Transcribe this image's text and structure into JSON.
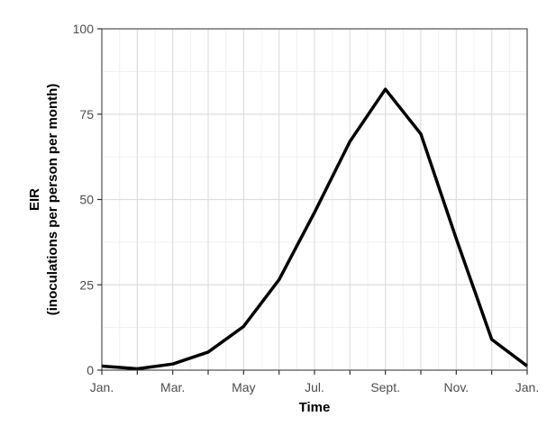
{
  "chart_data": {
    "type": "line",
    "title": "",
    "xlabel": "Time",
    "ylabel": "EIR",
    "ylabel_line2": "(inoculations per person per month)",
    "x_ticks": [
      {
        "x": 0,
        "label": "Jan."
      },
      {
        "x": 2,
        "label": "Mar."
      },
      {
        "x": 4,
        "label": "May"
      },
      {
        "x": 6,
        "label": "Jul."
      },
      {
        "x": 8,
        "label": "Sept."
      },
      {
        "x": 10,
        "label": "Nov."
      },
      {
        "x": 12,
        "label": "Jan."
      }
    ],
    "x_minor_ticks": [
      1,
      3,
      5,
      7,
      9,
      11
    ],
    "xlim": [
      0,
      12
    ],
    "y_ticks": [
      0,
      25,
      50,
      75,
      100
    ],
    "ylim": [
      0,
      100
    ],
    "grid": true,
    "series": [
      {
        "x": [
          0,
          1,
          2,
          3,
          4,
          5,
          6,
          7,
          8,
          9,
          10,
          11,
          12
        ],
        "values": [
          1.2,
          0.4,
          1.8,
          5.3,
          12.8,
          26.5,
          46.2,
          67.0,
          82.3,
          69.2,
          38.5,
          9.0,
          1.2
        ]
      }
    ],
    "line_color": "#000000",
    "grid_major_color": "#dedede",
    "grid_minor_color": "#f0f0f0",
    "tick_color": "#333333",
    "border_color": "#333333"
  }
}
